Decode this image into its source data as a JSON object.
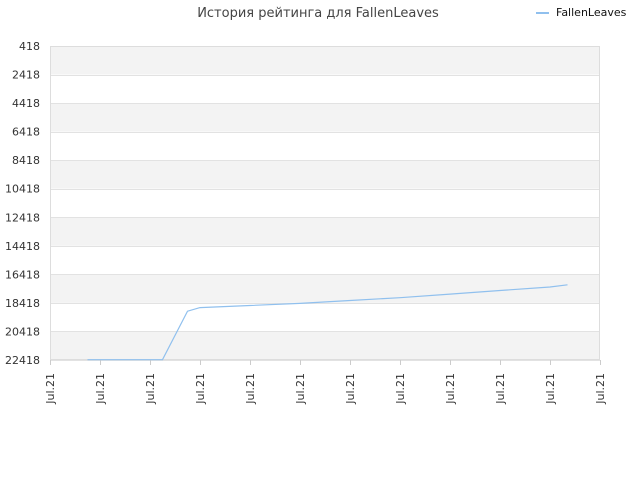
{
  "chart_data": {
    "type": "line",
    "title": "История рейтинга для FallenLeaves",
    "xlabel": "",
    "ylabel": "",
    "y_inverted": true,
    "ylim": [
      418,
      22418
    ],
    "y_ticks": [
      418,
      2418,
      4418,
      6418,
      8418,
      10418,
      12418,
      14418,
      16418,
      18418,
      20418,
      22418
    ],
    "x_ticks": [
      "Jul.21",
      "Jul.21",
      "Jul.21",
      "Jul.21",
      "Jul.21",
      "Jul.21",
      "Jul.21",
      "Jul.21",
      "Jul.21",
      "Jul.21",
      "Jul.21",
      "Jul.21"
    ],
    "grid": true,
    "legend_position": "top-right",
    "series": [
      {
        "name": "FallenLeaves",
        "color": "#90c0ee",
        "x": [
          0.75,
          2.25,
          2.75,
          3.0,
          4.0,
          5.0,
          6.0,
          7.0,
          8.0,
          9.0,
          10.0,
          10.35
        ],
        "y": [
          22400,
          22400,
          19000,
          18750,
          18600,
          18450,
          18250,
          18050,
          17800,
          17550,
          17300,
          17150
        ]
      }
    ]
  }
}
